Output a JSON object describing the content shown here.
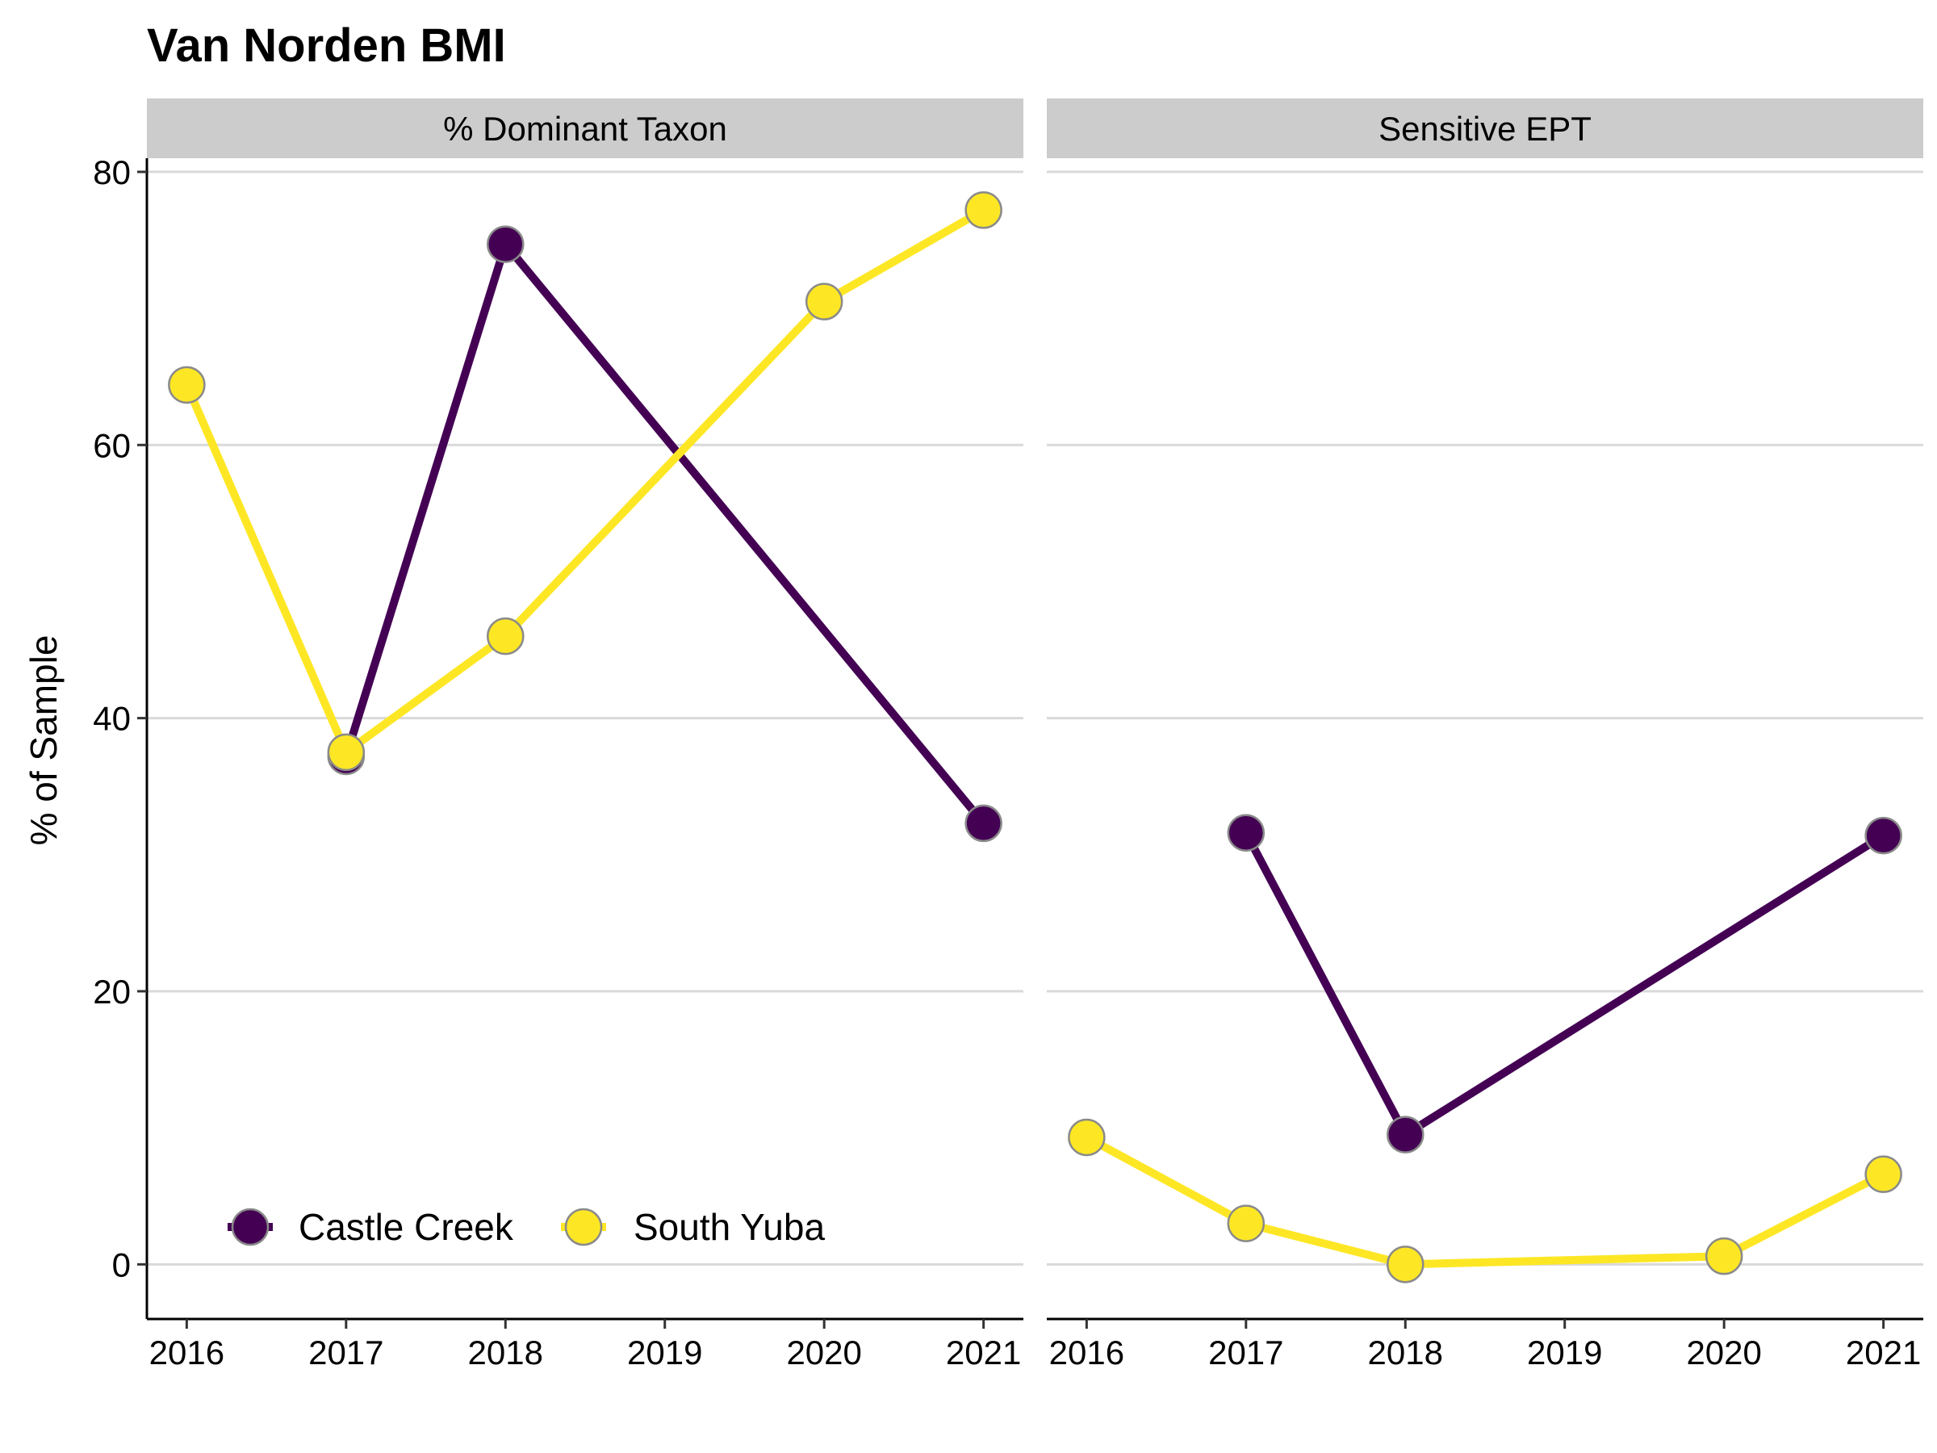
{
  "chart_data": {
    "type": "line",
    "title": "Van Norden BMI",
    "ylabel": "% of Sample",
    "xlabel": "",
    "ylim": [
      -4,
      81
    ],
    "y_ticks": [
      0,
      20,
      40,
      60,
      80
    ],
    "x_ticks": [
      2016,
      2017,
      2018,
      2019,
      2020,
      2021
    ],
    "xlim": [
      2015.75,
      2021.25
    ],
    "grid": "horizontal",
    "legend": {
      "position": "bottom-left-inside"
    },
    "series_styles": [
      {
        "name": "Castle Creek",
        "color": "#440154"
      },
      {
        "name": "South Yuba",
        "color": "#FDE725"
      }
    ],
    "panels": [
      {
        "strip": "% Dominant Taxon",
        "series": [
          {
            "name": "Castle Creek",
            "points": [
              [
                2017,
                37.2
              ],
              [
                2018,
                74.7
              ],
              [
                2021,
                32.3
              ]
            ]
          },
          {
            "name": "South Yuba",
            "points": [
              [
                2016,
                64.4
              ],
              [
                2017,
                37.5
              ],
              [
                2018,
                46.0
              ],
              [
                2020,
                70.5
              ],
              [
                2021,
                77.2
              ]
            ]
          }
        ]
      },
      {
        "strip": "Sensitive EPT",
        "series": [
          {
            "name": "Castle Creek",
            "points": [
              [
                2017,
                31.6
              ],
              [
                2018,
                9.5
              ],
              [
                2021,
                31.4
              ]
            ]
          },
          {
            "name": "South Yuba",
            "points": [
              [
                2016,
                9.3
              ],
              [
                2017,
                3.0
              ],
              [
                2018,
                0.0
              ],
              [
                2020,
                0.6
              ],
              [
                2021,
                6.6
              ]
            ]
          }
        ]
      }
    ]
  }
}
